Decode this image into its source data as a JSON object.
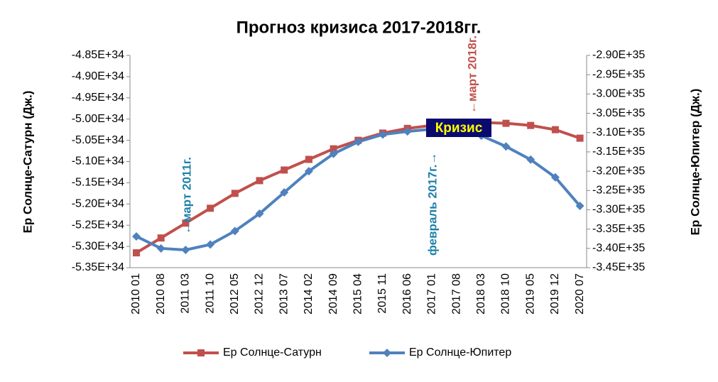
{
  "chart_data": {
    "type": "line",
    "title": "Прогноз кризиса  2017-2018гг.",
    "ylabel": "Ер Солнце-Сатурн (Дж.)",
    "y2label": "Ер Солнце-Юпитер (Дж.)",
    "categories": [
      "2010 01",
      "2010 08",
      "2011 03",
      "2011 10",
      "2012 05",
      "2012 12",
      "2013 07",
      "2014 02",
      "2014 09",
      "2015 04",
      "2015 11",
      "2016 06",
      "2017 01",
      "2017 08",
      "2018 03",
      "2018 10",
      "2019 05",
      "2019 12",
      "2020 07"
    ],
    "series": [
      {
        "name": "Ер Солнце-Сатурн",
        "color": "#c0504d",
        "values": [
          -5.315e+34,
          -5.28e+34,
          -5.245e+34,
          -5.21e+34,
          -5.175e+34,
          -5.145e+34,
          -5.12e+34,
          -5.095e+34,
          -5.07e+34,
          -5.05e+34,
          -5.033e+34,
          -5.022e+34,
          -5.015e+34,
          -5.01e+34,
          -5.008e+34,
          -5.01e+34,
          -5.015e+34,
          -5.025e+34,
          -5.045e+34
        ]
      },
      {
        "name": "Ер Солнце-Юпитер",
        "color": "#4f81bd",
        "axis": "y2",
        "values": [
          -3.369e+35,
          -3.4e+35,
          -3.404e+35,
          -3.39e+35,
          -3.355e+35,
          -3.31e+35,
          -3.255e+35,
          -3.2e+35,
          -3.155e+35,
          -3.124e+35,
          -3.105e+35,
          -3.097e+35,
          -3.091e+35,
          -3.094e+35,
          -3.108e+35,
          -3.136e+35,
          -3.17e+35,
          -3.216e+35,
          -3.29e+35
        ]
      }
    ],
    "ylim": [
      -5.35e+34,
      -4.85e+34
    ],
    "yticks": [
      {
        "value": -5.35e+34,
        "label": "-5.35E+34"
      },
      {
        "value": -5.3e+34,
        "label": "-5.30E+34"
      },
      {
        "value": -5.25e+34,
        "label": "-5.25E+34"
      },
      {
        "value": -5.2e+34,
        "label": "-5.20E+34"
      },
      {
        "value": -5.15e+34,
        "label": "-5.15E+34"
      },
      {
        "value": -5.1e+34,
        "label": "-5.10E+34"
      },
      {
        "value": -5.05e+34,
        "label": "-5.05E+34"
      },
      {
        "value": -5e+34,
        "label": "-5.00E+34"
      },
      {
        "value": -4.95e+34,
        "label": "-4.95E+34"
      },
      {
        "value": -4.9e+34,
        "label": "-4.90E+34"
      },
      {
        "value": -4.85e+34,
        "label": "-4.85E+34"
      }
    ],
    "y2lim": [
      -3.45e+35,
      -2.9e+35
    ],
    "y2ticks": [
      {
        "value": -3.45e+35,
        "label": "-3.45E+35"
      },
      {
        "value": -3.4e+35,
        "label": "-3.40E+35"
      },
      {
        "value": -3.35e+35,
        "label": "-3.35E+35"
      },
      {
        "value": -3.3e+35,
        "label": "-3.30E+35"
      },
      {
        "value": -3.25e+35,
        "label": "-3.25E+35"
      },
      {
        "value": -3.2e+35,
        "label": "-3.20E+35"
      },
      {
        "value": -3.15e+35,
        "label": "-3.15E+35"
      },
      {
        "value": -3.1e+35,
        "label": "-3.10E+35"
      },
      {
        "value": -3.05e+35,
        "label": "-3.05E+35"
      },
      {
        "value": -3e+35,
        "label": "-3.00E+35"
      },
      {
        "value": -2.95e+35,
        "label": "-2.95E+35"
      },
      {
        "value": -2.9e+35,
        "label": "-2.90E+35"
      }
    ],
    "annotations": [
      "Кризис",
      "←март 2018г.",
      "←март 2011г.",
      "февраль 2017г.→"
    ]
  }
}
